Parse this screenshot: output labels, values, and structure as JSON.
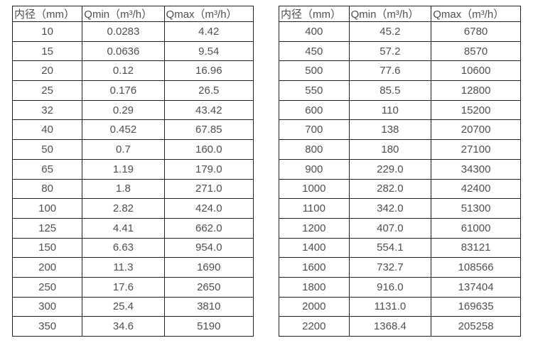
{
  "page": {
    "background_color": "#ffffff",
    "border_color": "#212121",
    "text_color": "#4f4f4f"
  },
  "tables": [
    {
      "name": "flow-spec-table-small-diameters",
      "headers": [
        "内径（mm）",
        "Qmin（m³/h）",
        "Qmax（m³/h）"
      ],
      "rows": [
        [
          "10",
          "0.0283",
          "4.42"
        ],
        [
          "15",
          "0.0636",
          "9.54"
        ],
        [
          "20",
          "0.12",
          "16.96"
        ],
        [
          "25",
          "0.176",
          "26.5"
        ],
        [
          "32",
          "0.29",
          "43.42"
        ],
        [
          "40",
          "0.452",
          "67.85"
        ],
        [
          "50",
          "0.7",
          "160.0"
        ],
        [
          "65",
          "1.19",
          "179.0"
        ],
        [
          "80",
          "1.8",
          "271.0"
        ],
        [
          "100",
          "2.82",
          "424.0"
        ],
        [
          "125",
          "4.41",
          "662.0"
        ],
        [
          "150",
          "6.63",
          "954.0"
        ],
        [
          "200",
          "11.3",
          "1690"
        ],
        [
          "250",
          "17.6",
          "2650"
        ],
        [
          "300",
          "25.4",
          "3810"
        ],
        [
          "350",
          "34.6",
          "5190"
        ]
      ]
    },
    {
      "name": "flow-spec-table-large-diameters",
      "headers": [
        "内径（mm）",
        "Qmin（m³/h）",
        "Qmax（m³/h）"
      ],
      "rows": [
        [
          "400",
          "45.2",
          "6780"
        ],
        [
          "450",
          "57.2",
          "8570"
        ],
        [
          "500",
          "77.6",
          "10600"
        ],
        [
          "550",
          "85.5",
          "12800"
        ],
        [
          "600",
          "110",
          "15200"
        ],
        [
          "700",
          "138",
          "20700"
        ],
        [
          "800",
          "180",
          "27100"
        ],
        [
          "900",
          "229.0",
          "34300"
        ],
        [
          "1000",
          "282.0",
          "42400"
        ],
        [
          "1100",
          "342.0",
          "51300"
        ],
        [
          "1200",
          "407.0",
          "61000"
        ],
        [
          "1400",
          "554.1",
          "83121"
        ],
        [
          "1600",
          "732.7",
          "108566"
        ],
        [
          "1800",
          "916.0",
          "137404"
        ],
        [
          "2000",
          "1131.0",
          "169635"
        ],
        [
          "2200",
          "1368.4",
          "205258"
        ]
      ]
    }
  ]
}
